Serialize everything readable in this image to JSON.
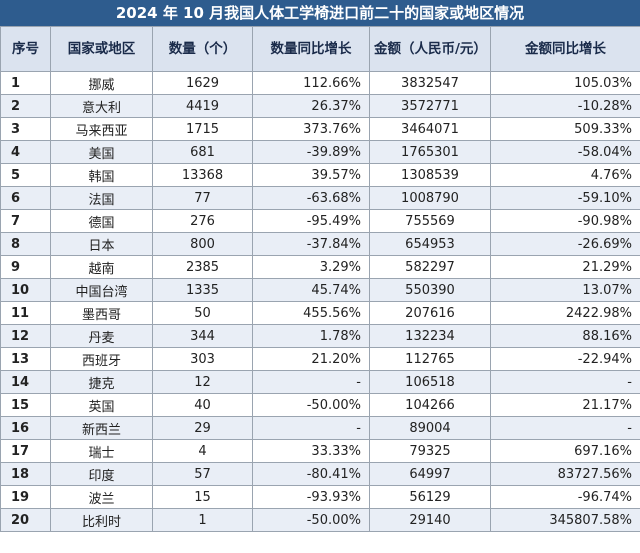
{
  "title": "2024 年 10 月我国人体工学椅进口前二十的国家或地区情况",
  "headers": [
    "序号",
    "国家或地区",
    "数量（个）",
    "数量同比增长",
    "金额（人民币/元）",
    "金额同比增长"
  ],
  "rows": [
    [
      "1",
      "挪威",
      "1629",
      "112.66%",
      "3832547",
      "105.03%"
    ],
    [
      "2",
      "意大利",
      "4419",
      "26.37%",
      "3572771",
      "-10.28%"
    ],
    [
      "3",
      "马来西亚",
      "1715",
      "373.76%",
      "3464071",
      "509.33%"
    ],
    [
      "4",
      "美国",
      "681",
      "-39.89%",
      "1765301",
      "-58.04%"
    ],
    [
      "5",
      "韩国",
      "13368",
      "39.57%",
      "1308539",
      "4.76%"
    ],
    [
      "6",
      "法国",
      "77",
      "-63.68%",
      "1008790",
      "-59.10%"
    ],
    [
      "7",
      "德国",
      "276",
      "-95.49%",
      "755569",
      "-90.98%"
    ],
    [
      "8",
      "日本",
      "800",
      "-37.84%",
      "654953",
      "-26.69%"
    ],
    [
      "9",
      "越南",
      "2385",
      "3.29%",
      "582297",
      "21.29%"
    ],
    [
      "10",
      "中国台湾",
      "1335",
      "45.74%",
      "550390",
      "13.07%"
    ],
    [
      "11",
      "墨西哥",
      "50",
      "455.56%",
      "207616",
      "2422.98%"
    ],
    [
      "12",
      "丹麦",
      "344",
      "1.78%",
      "132234",
      "88.16%"
    ],
    [
      "13",
      "西班牙",
      "303",
      "21.20%",
      "112765",
      "-22.94%"
    ],
    [
      "14",
      "捷克",
      "12",
      "-",
      "106518",
      "-"
    ],
    [
      "15",
      "英国",
      "40",
      "-50.00%",
      "104266",
      "21.17%"
    ],
    [
      "16",
      "新西兰",
      "29",
      "-",
      "89004",
      "-"
    ],
    [
      "17",
      "瑞士",
      "4",
      "33.33%",
      "79325",
      "697.16%"
    ],
    [
      "18",
      "印度",
      "57",
      "-80.41%",
      "64997",
      "83727.56%"
    ],
    [
      "19",
      "波兰",
      "15",
      "-93.93%",
      "56129",
      "-96.74%"
    ],
    [
      "20",
      "比利时",
      "1",
      "-50.00%",
      "29140",
      "345807.58%"
    ]
  ]
}
